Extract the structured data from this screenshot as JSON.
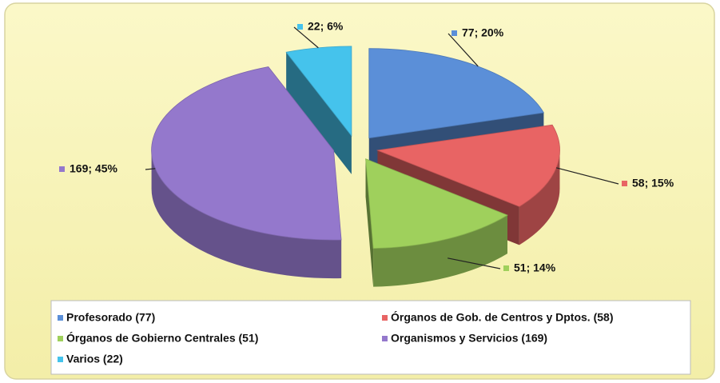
{
  "chart_data": {
    "type": "pie",
    "categories": [
      "Profesorado (77)",
      "Órganos de Gob. de Centros y Dptos. (58)",
      "Órganos de Gobierno Centrales (51)",
      "Organismos y Servicios (169)",
      "Varios (22)"
    ],
    "values": [
      77,
      58,
      51,
      169,
      22
    ],
    "value_labels": [
      "77; 20%",
      "58; 15%",
      "51; 14%",
      "169; 45%",
      "22; 6%"
    ],
    "colors": [
      "#5b8fd8",
      "#e86464",
      "#9fd05c",
      "#9478cc",
      "#45c3ec"
    ],
    "legend": "bottom"
  }
}
